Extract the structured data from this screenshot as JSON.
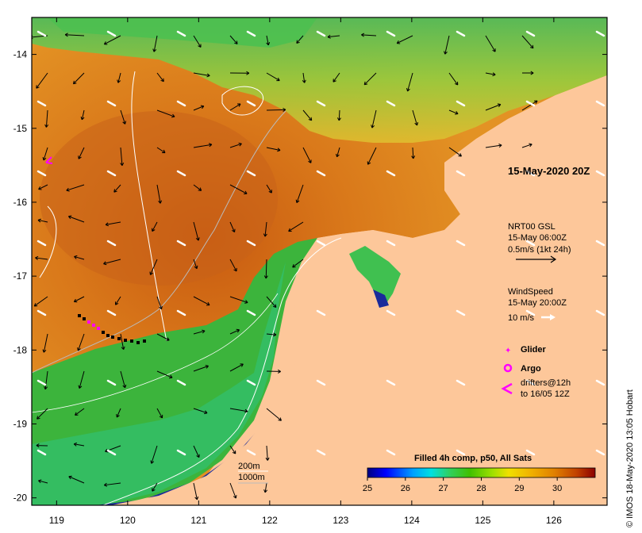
{
  "map": {
    "date_label": "15-May-2020 20Z",
    "credit": "© IMOS 18-May-2020 13:05 Hobart",
    "lon_ticks": [
      119,
      120,
      121,
      122,
      123,
      124,
      125,
      126
    ],
    "lat_ticks": [
      -14,
      -15,
      -16,
      -17,
      -18,
      -19,
      -20
    ],
    "lon_range": [
      118.65,
      126.75
    ],
    "lat_range": [
      -20.1,
      -13.5
    ],
    "colors": {
      "land": "#fdc79a",
      "warm_water": "#e08a18",
      "cool_water": "#3fb83f",
      "deep_cool": "#1a2a9a",
      "current_arrow": "#000000",
      "wind_arrow": "#ffffff",
      "glider": "#ff00ff",
      "argo": "#ff00ff",
      "drifter": "#ff00ff"
    }
  },
  "legend": {
    "currents_title": "NRT00 GSL",
    "currents_time": "15-May 06:00Z",
    "currents_scale": "0.5m/s (1kt 24h)",
    "wind_title": "WindSpeed",
    "wind_time": "15-May 20:00Z",
    "wind_scale": "10 m/s",
    "glider_label": "Glider",
    "argo_label": "Argo",
    "drifters_label_1": "drifters@12h",
    "drifters_label_2": "to 16/05 12Z",
    "isobath_200": "200m",
    "isobath_1000": "1000m"
  },
  "colorbar": {
    "title": "Filled 4h comp, p50, All Sats",
    "ticks": [
      "25",
      "26",
      "27",
      "28",
      "29",
      "30"
    ],
    "range": [
      25,
      31
    ],
    "stops": [
      "#00007f",
      "#0000ff",
      "#00a0ff",
      "#00e0e0",
      "#30d060",
      "#40c000",
      "#a0e000",
      "#f0e000",
      "#f0b000",
      "#e08000",
      "#c04000",
      "#8b0000"
    ]
  }
}
